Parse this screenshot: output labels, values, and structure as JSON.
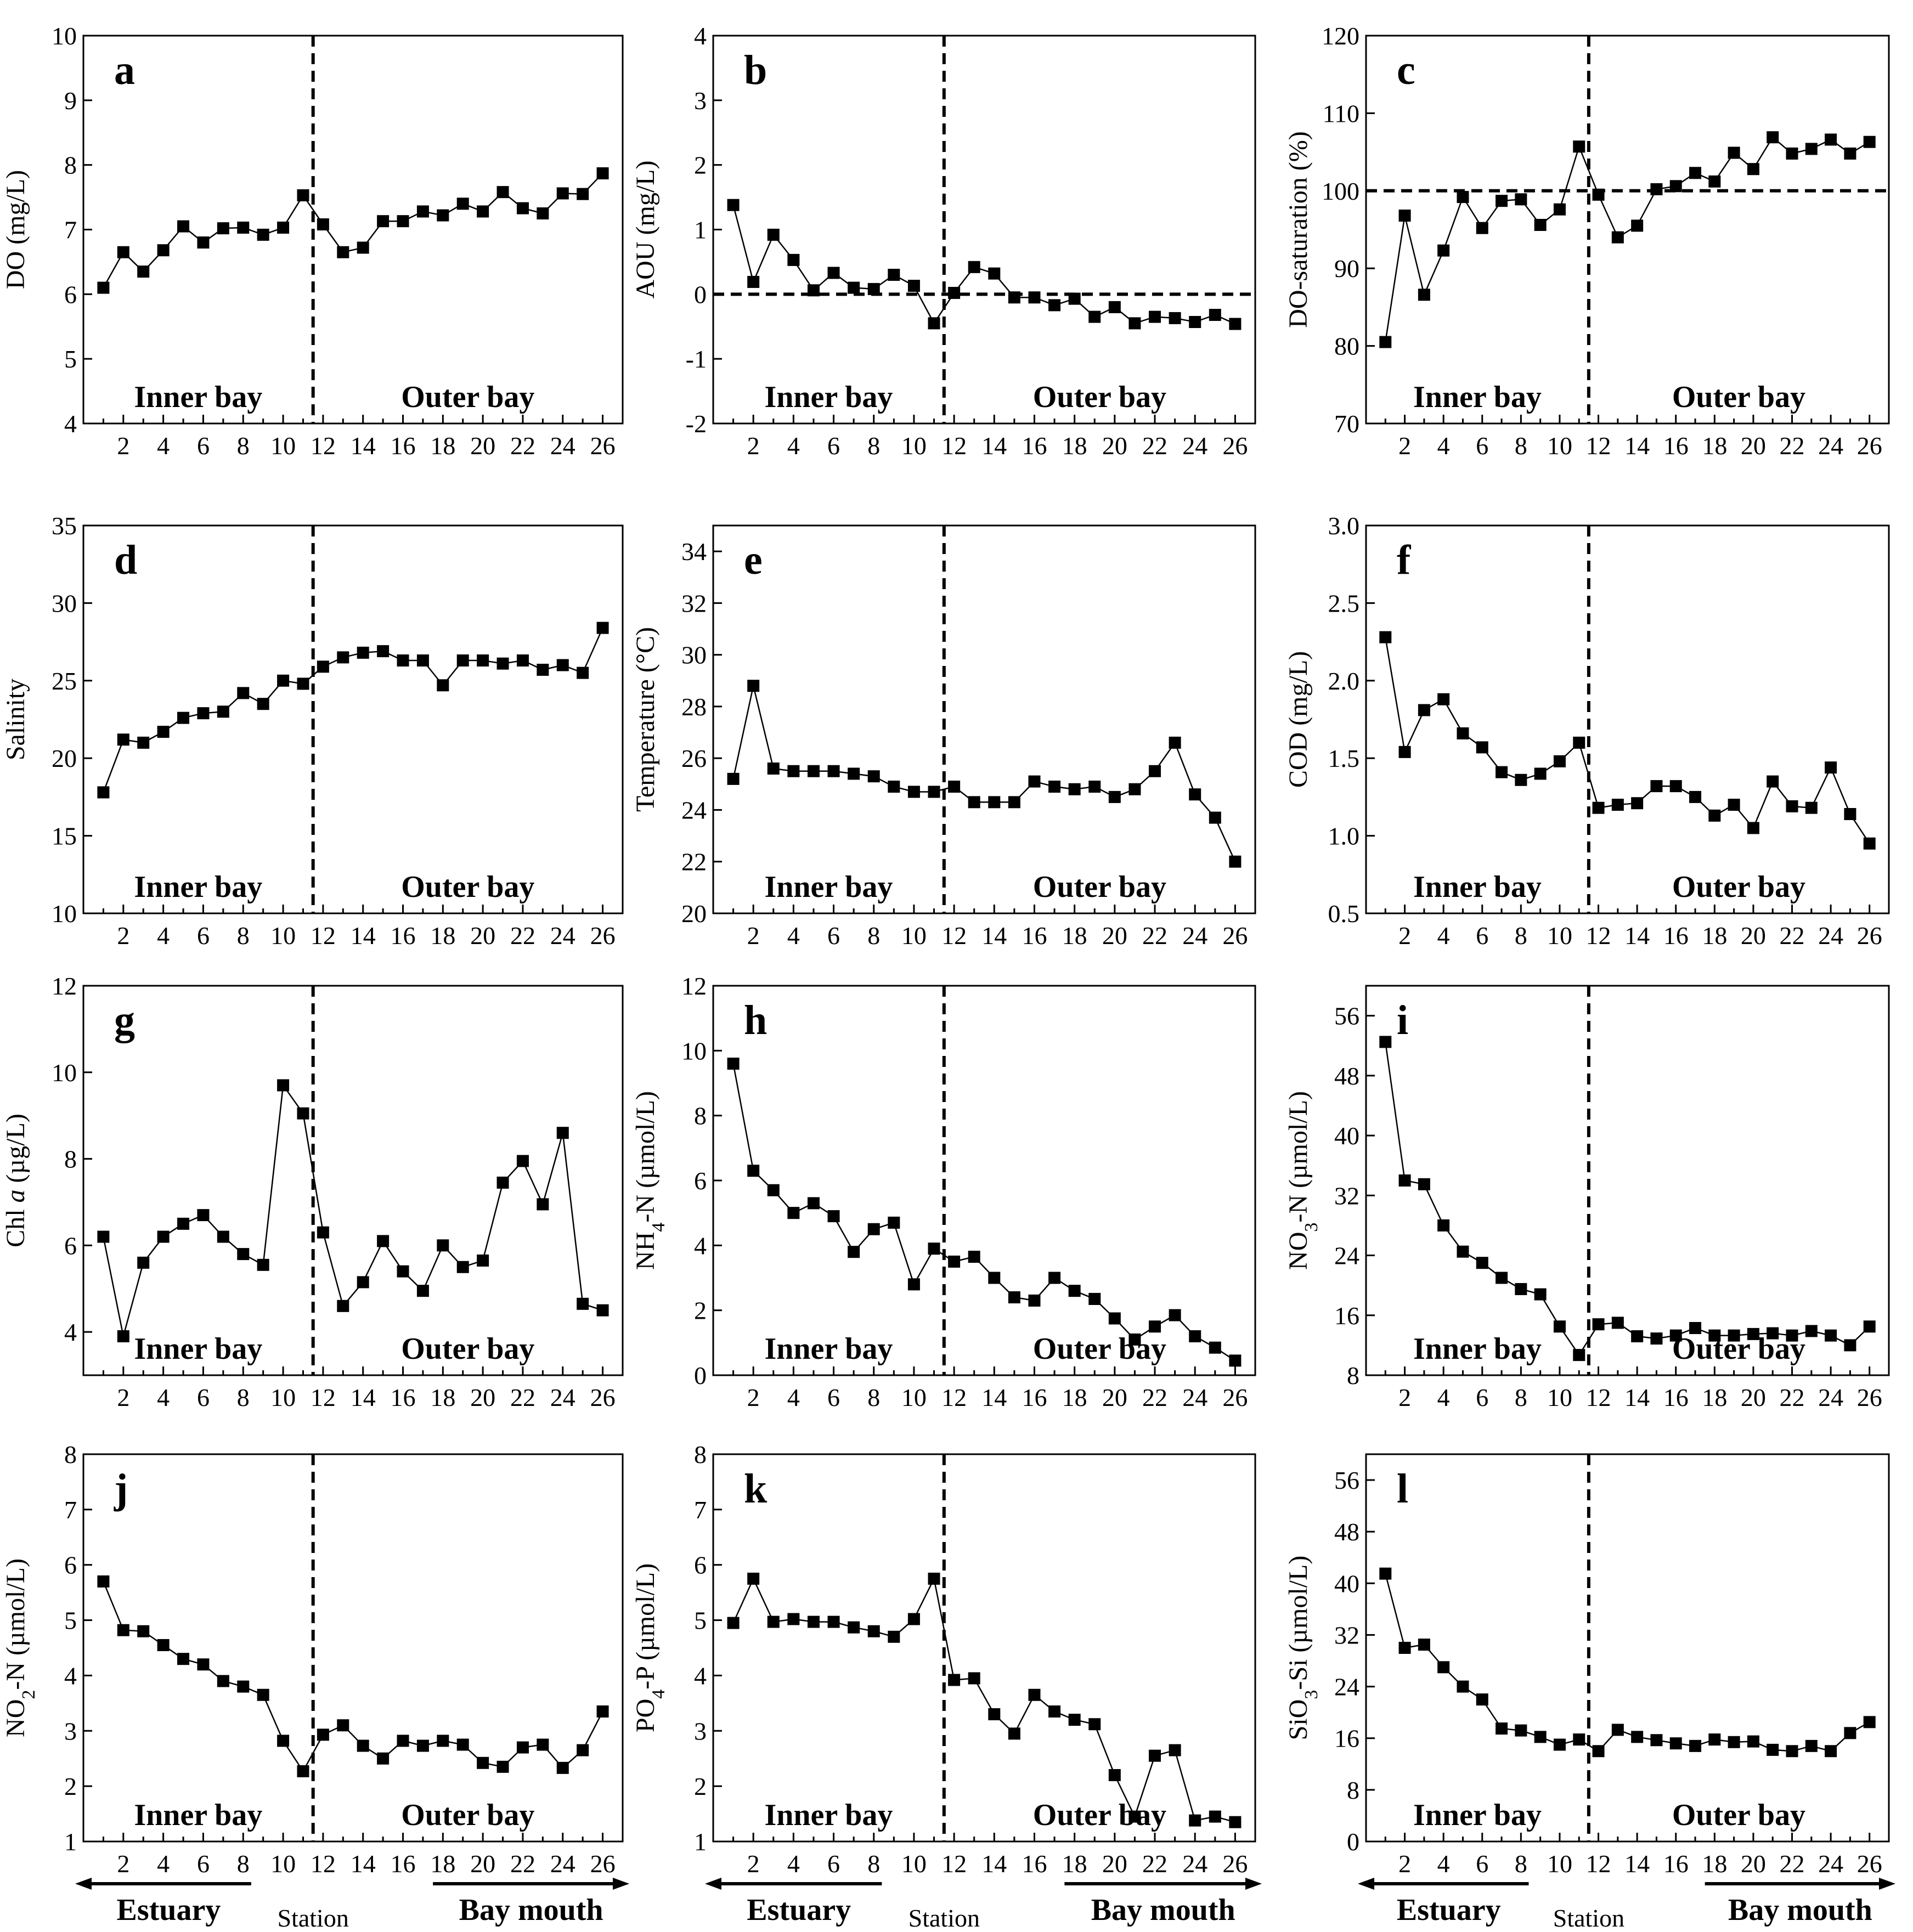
{
  "chart_data": [
    {
      "id": "a",
      "type": "line",
      "panel_label": "a",
      "ylabel": "DO (mg/L)",
      "ylim": [
        4,
        10
      ],
      "yticks": [
        4,
        5,
        6,
        7,
        8,
        9,
        10
      ],
      "xlim": [
        0,
        27
      ],
      "xticks": [
        2,
        4,
        6,
        8,
        10,
        12,
        14,
        16,
        18,
        20,
        22,
        24,
        26
      ],
      "divider_x": 11.5,
      "hline": null,
      "region_labels": [
        "Inner bay",
        "Outer bay"
      ],
      "x": [
        1,
        2,
        3,
        4,
        5,
        6,
        7,
        8,
        9,
        10,
        11,
        12,
        13,
        14,
        15,
        16,
        17,
        18,
        19,
        20,
        21,
        22,
        23,
        24,
        25,
        26
      ],
      "values": [
        6.1,
        6.65,
        6.35,
        6.68,
        7.05,
        6.8,
        7.02,
        7.03,
        6.92,
        7.03,
        7.53,
        7.08,
        6.65,
        6.72,
        7.13,
        7.13,
        7.28,
        7.22,
        7.4,
        7.28,
        7.58,
        7.33,
        7.25,
        7.56,
        7.55,
        7.87
      ]
    },
    {
      "id": "b",
      "type": "line",
      "panel_label": "b",
      "ylabel": "AOU (mg/L)",
      "ylim": [
        -2,
        4
      ],
      "yticks": [
        -2,
        -1,
        0,
        1,
        2,
        3,
        4
      ],
      "xlim": [
        0,
        27
      ],
      "xticks": [
        2,
        4,
        6,
        8,
        10,
        12,
        14,
        16,
        18,
        20,
        22,
        24,
        26
      ],
      "divider_x": 11.5,
      "hline": 0,
      "region_labels": [
        "Inner bay",
        "Outer bay"
      ],
      "x": [
        1,
        2,
        3,
        4,
        5,
        6,
        7,
        8,
        9,
        10,
        11,
        12,
        13,
        14,
        15,
        16,
        17,
        18,
        19,
        20,
        21,
        22,
        23,
        24,
        25,
        26
      ],
      "values": [
        1.38,
        0.19,
        0.92,
        0.53,
        0.06,
        0.33,
        0.1,
        0.08,
        0.3,
        0.13,
        -0.45,
        0.02,
        0.42,
        0.32,
        -0.05,
        -0.05,
        -0.17,
        -0.07,
        -0.35,
        -0.2,
        -0.45,
        -0.35,
        -0.37,
        -0.43,
        -0.32,
        -0.46
      ]
    },
    {
      "id": "c",
      "type": "line",
      "panel_label": "c",
      "ylabel": "DO-saturation (%)",
      "ylim": [
        70,
        120
      ],
      "yticks": [
        70,
        80,
        90,
        100,
        110,
        120
      ],
      "xlim": [
        0,
        27
      ],
      "xticks": [
        2,
        4,
        6,
        8,
        10,
        12,
        14,
        16,
        18,
        20,
        22,
        24,
        26
      ],
      "divider_x": 11.5,
      "hline": 100,
      "region_labels": [
        "Inner bay",
        "Outer bay"
      ],
      "x": [
        1,
        2,
        3,
        4,
        5,
        6,
        7,
        8,
        9,
        10,
        11,
        12,
        13,
        14,
        15,
        16,
        17,
        18,
        19,
        20,
        21,
        22,
        23,
        24,
        25,
        26
      ],
      "values": [
        80.5,
        96.8,
        86.6,
        92.3,
        99.2,
        95.2,
        98.7,
        98.9,
        95.6,
        97.6,
        105.7,
        99.5,
        94.0,
        95.5,
        100.2,
        100.6,
        102.3,
        101.2,
        104.9,
        102.8,
        106.9,
        104.8,
        105.4,
        106.6,
        104.8,
        106.3
      ]
    },
    {
      "id": "d",
      "type": "line",
      "panel_label": "d",
      "ylabel": "Salinity",
      "ylim": [
        10,
        35
      ],
      "yticks": [
        10,
        15,
        20,
        25,
        30,
        35
      ],
      "xlim": [
        0,
        27
      ],
      "xticks": [
        2,
        4,
        6,
        8,
        10,
        12,
        14,
        16,
        18,
        20,
        22,
        24,
        26
      ],
      "divider_x": 11.5,
      "hline": null,
      "region_labels": [
        "Inner bay",
        "Outer bay"
      ],
      "x": [
        1,
        2,
        3,
        4,
        5,
        6,
        7,
        8,
        9,
        10,
        11,
        12,
        13,
        14,
        15,
        16,
        17,
        18,
        19,
        20,
        21,
        22,
        23,
        24,
        25,
        26
      ],
      "values": [
        17.8,
        21.2,
        21.0,
        21.7,
        22.6,
        22.9,
        23.0,
        24.2,
        23.5,
        25.0,
        24.8,
        25.9,
        26.5,
        26.8,
        26.9,
        26.3,
        26.3,
        24.7,
        26.3,
        26.3,
        26.1,
        26.3,
        25.7,
        26.0,
        25.5,
        28.4
      ]
    },
    {
      "id": "e",
      "type": "line",
      "panel_label": "e",
      "ylabel": "Temperature (°C)",
      "ylim": [
        20,
        35
      ],
      "yticks": [
        20,
        22,
        24,
        26,
        28,
        30,
        32,
        34
      ],
      "xlim": [
        0,
        27
      ],
      "xticks": [
        2,
        4,
        6,
        8,
        10,
        12,
        14,
        16,
        18,
        20,
        22,
        24,
        26
      ],
      "divider_x": 11.5,
      "hline": null,
      "region_labels": [
        "Inner bay",
        "Outer bay"
      ],
      "x": [
        1,
        2,
        3,
        4,
        5,
        6,
        7,
        8,
        9,
        10,
        11,
        12,
        13,
        14,
        15,
        16,
        17,
        18,
        19,
        20,
        21,
        22,
        23,
        24,
        25,
        26
      ],
      "values": [
        25.2,
        28.8,
        25.6,
        25.5,
        25.5,
        25.5,
        25.4,
        25.3,
        24.9,
        24.7,
        24.7,
        24.9,
        24.3,
        24.3,
        24.3,
        25.1,
        24.9,
        24.8,
        24.9,
        24.5,
        24.8,
        25.5,
        26.6,
        24.6,
        23.7,
        22.0
      ]
    },
    {
      "id": "f",
      "type": "line",
      "panel_label": "f",
      "ylabel": "COD (mg/L)",
      "ylim": [
        0.5,
        3.0
      ],
      "yticks": [
        "0.5",
        "1.0",
        "1.5",
        "2.0",
        "2.5",
        "3.0"
      ],
      "xlim": [
        0,
        27
      ],
      "xticks": [
        2,
        4,
        6,
        8,
        10,
        12,
        14,
        16,
        18,
        20,
        22,
        24,
        26
      ],
      "divider_x": 11.5,
      "hline": null,
      "region_labels": [
        "Inner bay",
        "Outer bay"
      ],
      "x": [
        1,
        2,
        3,
        4,
        5,
        6,
        7,
        8,
        9,
        10,
        11,
        12,
        13,
        14,
        15,
        16,
        17,
        18,
        19,
        20,
        21,
        22,
        23,
        24,
        25,
        26
      ],
      "values": [
        2.28,
        1.54,
        1.81,
        1.88,
        1.66,
        1.57,
        1.41,
        1.36,
        1.4,
        1.48,
        1.6,
        1.18,
        1.2,
        1.21,
        1.32,
        1.32,
        1.25,
        1.13,
        1.2,
        1.05,
        1.35,
        1.19,
        1.18,
        1.44,
        1.14,
        0.95
      ]
    },
    {
      "id": "g",
      "type": "line",
      "panel_label": "g",
      "ylabel": "Chl a (µg/L)",
      "ylim": [
        3,
        12
      ],
      "yticks": [
        4,
        6,
        8,
        10,
        12
      ],
      "xlim": [
        0,
        27
      ],
      "xticks": [
        2,
        4,
        6,
        8,
        10,
        12,
        14,
        16,
        18,
        20,
        22,
        24,
        26
      ],
      "divider_x": 11.5,
      "hline": null,
      "region_labels": [
        "Inner bay",
        "Outer bay"
      ],
      "x": [
        1,
        2,
        3,
        4,
        5,
        6,
        7,
        8,
        9,
        10,
        11,
        12,
        13,
        14,
        15,
        16,
        17,
        18,
        19,
        20,
        21,
        22,
        23,
        24,
        25,
        26
      ],
      "values": [
        6.2,
        3.9,
        5.6,
        6.2,
        6.5,
        6.7,
        6.2,
        5.8,
        5.55,
        9.7,
        9.05,
        6.3,
        4.6,
        5.15,
        6.1,
        5.4,
        4.95,
        6.0,
        5.5,
        5.65,
        7.45,
        7.95,
        6.95,
        8.6,
        4.65,
        4.5
      ]
    },
    {
      "id": "h",
      "type": "line",
      "panel_label": "h",
      "ylabel": "NH4-N (µmol/L)",
      "ylim": [
        0,
        12
      ],
      "yticks": [
        0,
        2,
        4,
        6,
        8,
        10,
        12
      ],
      "xlim": [
        0,
        27
      ],
      "xticks": [
        2,
        4,
        6,
        8,
        10,
        12,
        14,
        16,
        18,
        20,
        22,
        24,
        26
      ],
      "divider_x": 11.5,
      "hline": null,
      "region_labels": [
        "Inner bay",
        "Outer bay"
      ],
      "x": [
        1,
        2,
        3,
        4,
        5,
        6,
        7,
        8,
        9,
        10,
        11,
        12,
        13,
        14,
        15,
        16,
        17,
        18,
        19,
        20,
        21,
        22,
        23,
        24,
        25,
        26
      ],
      "values": [
        9.6,
        6.3,
        5.7,
        5.0,
        5.3,
        4.9,
        3.8,
        4.5,
        4.7,
        2.8,
        3.9,
        3.5,
        3.65,
        3.0,
        2.4,
        2.3,
        3.0,
        2.6,
        2.35,
        1.75,
        1.1,
        1.5,
        1.85,
        1.2,
        0.85,
        0.45
      ]
    },
    {
      "id": "i",
      "type": "line",
      "panel_label": "i",
      "ylabel": "NO3-N (µmol/L)",
      "ylim": [
        8,
        60
      ],
      "yticks": [
        8,
        16,
        24,
        32,
        40,
        48,
        56
      ],
      "xlim": [
        0,
        27
      ],
      "xticks": [
        2,
        4,
        6,
        8,
        10,
        12,
        14,
        16,
        18,
        20,
        22,
        24,
        26
      ],
      "divider_x": 11.5,
      "hline": null,
      "region_labels": [
        "Inner bay",
        "Outer bay"
      ],
      "x": [
        1,
        2,
        3,
        4,
        5,
        6,
        7,
        8,
        9,
        10,
        11,
        12,
        13,
        14,
        15,
        16,
        17,
        18,
        19,
        20,
        21,
        22,
        23,
        24,
        25,
        26
      ],
      "values": [
        52.5,
        34.0,
        33.5,
        28.0,
        24.5,
        23.0,
        21.0,
        19.5,
        18.8,
        14.5,
        10.7,
        14.8,
        15.0,
        13.2,
        12.9,
        13.3,
        14.3,
        13.3,
        13.3,
        13.5,
        13.6,
        13.3,
        13.9,
        13.3,
        12.0,
        14.5
      ]
    },
    {
      "id": "j",
      "type": "line",
      "panel_label": "j",
      "ylabel": "NO2-N (µmol/L)",
      "ylim": [
        1,
        8
      ],
      "yticks": [
        1,
        2,
        3,
        4,
        5,
        6,
        7,
        8
      ],
      "xlim": [
        0,
        27
      ],
      "xticks": [
        2,
        4,
        6,
        8,
        10,
        12,
        14,
        16,
        18,
        20,
        22,
        24,
        26
      ],
      "divider_x": 11.5,
      "hline": null,
      "region_labels": [
        "Inner bay",
        "Outer bay"
      ],
      "x": [
        1,
        2,
        3,
        4,
        5,
        6,
        7,
        8,
        9,
        10,
        11,
        12,
        13,
        14,
        15,
        16,
        17,
        18,
        19,
        20,
        21,
        22,
        23,
        24,
        25,
        26
      ],
      "values": [
        5.7,
        4.82,
        4.8,
        4.55,
        4.3,
        4.2,
        3.9,
        3.8,
        3.65,
        2.82,
        2.27,
        2.93,
        3.1,
        2.73,
        2.5,
        2.82,
        2.73,
        2.82,
        2.75,
        2.42,
        2.35,
        2.7,
        2.75,
        2.33,
        2.65,
        3.35
      ]
    },
    {
      "id": "k",
      "type": "line",
      "panel_label": "k",
      "ylabel": "PO4-P (µmol/L)",
      "ylim": [
        1,
        8
      ],
      "yticks": [
        1,
        2,
        3,
        4,
        5,
        6,
        7,
        8
      ],
      "xlim": [
        0,
        27
      ],
      "xticks": [
        2,
        4,
        6,
        8,
        10,
        12,
        14,
        16,
        18,
        20,
        22,
        24,
        26
      ],
      "divider_x": 11.5,
      "hline": null,
      "region_labels": [
        "Inner bay",
        "Outer bay"
      ],
      "x": [
        1,
        2,
        3,
        4,
        5,
        6,
        7,
        8,
        9,
        10,
        11,
        12,
        13,
        14,
        15,
        16,
        17,
        18,
        19,
        20,
        21,
        22,
        23,
        24,
        25,
        26
      ],
      "values": [
        4.95,
        5.75,
        4.97,
        5.02,
        4.97,
        4.97,
        4.87,
        4.8,
        4.7,
        5.02,
        5.75,
        3.92,
        3.95,
        3.3,
        2.95,
        3.65,
        3.35,
        3.2,
        3.12,
        2.2,
        1.45,
        2.55,
        2.65,
        1.38,
        1.45,
        1.35
      ]
    },
    {
      "id": "l",
      "type": "line",
      "panel_label": "l",
      "ylabel": "SiO3-Si (µmol/L)",
      "ylim": [
        0,
        60
      ],
      "yticks": [
        0,
        8,
        16,
        24,
        32,
        40,
        48,
        56
      ],
      "xlim": [
        0,
        27
      ],
      "xticks": [
        2,
        4,
        6,
        8,
        10,
        12,
        14,
        16,
        18,
        20,
        22,
        24,
        26
      ],
      "divider_x": 11.5,
      "hline": null,
      "region_labels": [
        "Inner bay",
        "Outer bay"
      ],
      "x": [
        1,
        2,
        3,
        4,
        5,
        6,
        7,
        8,
        9,
        10,
        11,
        12,
        13,
        14,
        15,
        16,
        17,
        18,
        19,
        20,
        21,
        22,
        23,
        24,
        25,
        26
      ],
      "values": [
        41.5,
        30.0,
        30.5,
        27.0,
        24.0,
        22.0,
        17.5,
        17.2,
        16.2,
        15.0,
        15.8,
        14.0,
        17.3,
        16.2,
        15.7,
        15.2,
        14.8,
        15.8,
        15.4,
        15.5,
        14.2,
        14.0,
        14.8,
        14.0,
        16.8,
        18.5
      ]
    }
  ],
  "footer": {
    "estuary": "Estuary",
    "station": "Station",
    "bay_mouth": "Bay mouth"
  }
}
